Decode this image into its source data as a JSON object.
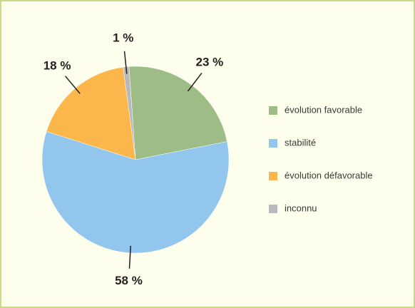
{
  "chart_data": {
    "type": "pie",
    "categories": [
      "évolution favorable",
      "stabilité",
      "évolution défavorable",
      "inconnu"
    ],
    "values": [
      23,
      58,
      18,
      1
    ],
    "value_labels": [
      "23 %",
      "58 %",
      "18 %",
      "1 %"
    ],
    "colors": [
      "#9dbc86",
      "#93c6ec",
      "#fbb74c",
      "#b9b9bb"
    ],
    "legend": "right"
  }
}
